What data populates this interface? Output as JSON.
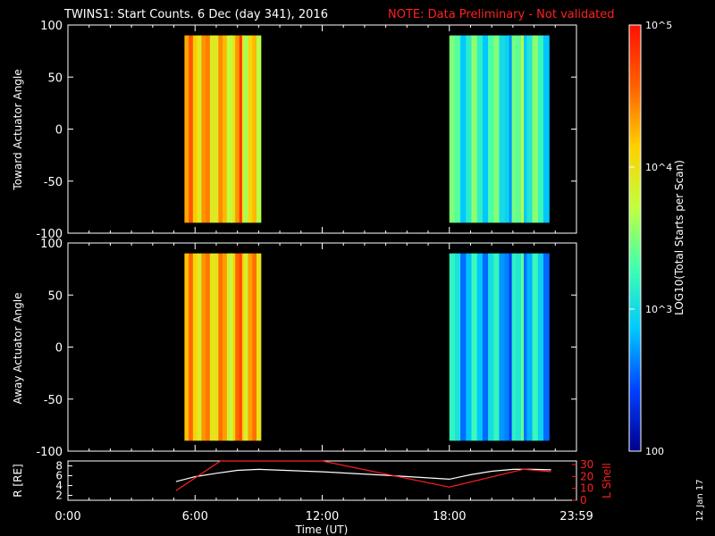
{
  "header": {
    "title": "TWINS1: Start Counts.  6 Dec (day 341), 2016",
    "note": "NOTE: Data Preliminary - Not validated"
  },
  "side_date": "12 Jan 17",
  "colors": {
    "background": "#000000",
    "axes": "#ffffff",
    "note": "#ff2020",
    "rlabel_line": "#ffffff",
    "lshell_line": "#ff2020"
  },
  "chart_data": [
    {
      "type": "heatmap",
      "panel": "toward",
      "ylabel": "Toward Actuator Angle",
      "ylim": [
        -100,
        100
      ],
      "yticks": [
        "100",
        "50",
        "0",
        "-50",
        "-100"
      ],
      "x_range_hours": [
        0,
        24
      ],
      "data_blocks": [
        {
          "x_start_hours": 5.5,
          "x_end_hours": 9.1,
          "y_range": [
            -90,
            90
          ],
          "log10_counts_approx": 4.3,
          "description": "high counts, decreasing toward end"
        },
        {
          "x_start_hours": 18.0,
          "x_end_hours": 22.7,
          "y_range": [
            -90,
            90
          ],
          "log10_counts_approx": 3.2,
          "description": "low counts, rising near -90 deg late"
        }
      ],
      "grid": false
    },
    {
      "type": "heatmap",
      "panel": "away",
      "ylabel": "Away Actuator Angle",
      "ylim": [
        -100,
        100
      ],
      "yticks": [
        "100",
        "50",
        "0",
        "-50",
        "-100"
      ],
      "x_range_hours": [
        0,
        24
      ],
      "data_blocks": [
        {
          "x_start_hours": 5.5,
          "x_end_hours": 9.1,
          "y_range": [
            -90,
            90
          ],
          "log10_counts_approx": 4.2,
          "description": "high counts"
        },
        {
          "x_start_hours": 18.0,
          "x_end_hours": 22.7,
          "y_range": [
            -90,
            90
          ],
          "log10_counts_approx": 2.9,
          "description": "low counts, rising near +90 deg late"
        }
      ],
      "grid": false
    },
    {
      "type": "line",
      "panel": "orbit",
      "ylabel_left": "R [RE]",
      "ylabel_right": "L Shell",
      "ylim_left": [
        1,
        9
      ],
      "yticks_left": [
        "8",
        "6",
        "4",
        "2"
      ],
      "ylim_right": [
        0,
        33
      ],
      "yticks_right": [
        "30",
        "20",
        "10",
        "0"
      ],
      "xlabel": "Time (UT)",
      "xticks": [
        "0:00",
        "6:00",
        "12:00",
        "18:00",
        "23:59"
      ],
      "xtick_hours": [
        0,
        6,
        12,
        18,
        24
      ],
      "x_range_hours": [
        0,
        24
      ],
      "series": [
        {
          "axis": "left",
          "x": [
            5.1,
            6.0,
            7.0,
            8.0,
            9.0,
            12.0,
            15.0,
            18.0,
            19.0,
            20.0,
            21.0,
            22.0,
            22.8
          ],
          "y": [
            4.8,
            5.8,
            6.5,
            7.1,
            7.3,
            6.8,
            6.1,
            5.3,
            6.2,
            6.9,
            7.3,
            7.3,
            7.2
          ]
        },
        {
          "axis": "right",
          "x": [
            5.1,
            7.2,
            12.0,
            18.0,
            21.5,
            22.8
          ],
          "y": [
            8,
            33,
            33,
            11,
            26,
            24
          ]
        }
      ]
    },
    {
      "type": "colorbar",
      "label": "LOG10(Total Starts per Scan)",
      "scale": "log",
      "range": [
        100,
        100000
      ],
      "tick_labels": [
        "10^5",
        "10^4",
        "10^3",
        "100"
      ],
      "tick_values": [
        100000,
        10000,
        1000,
        100
      ],
      "colormap": [
        "#00008c",
        "#0040ff",
        "#00c8ff",
        "#40ffb0",
        "#c0ff40",
        "#ffd000",
        "#ff6000",
        "#ff1000"
      ]
    }
  ]
}
